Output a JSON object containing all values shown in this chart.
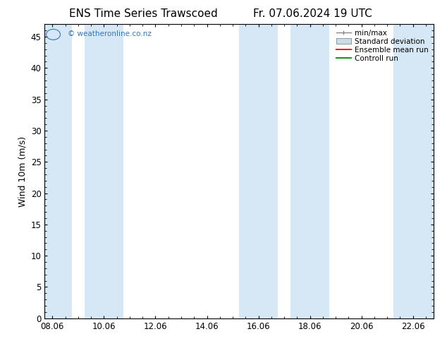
{
  "title_left": "ENS Time Series Trawscoed",
  "title_right": "Fr. 07.06.2024 19 UTC",
  "ylabel": "Wind 10m (m/s)",
  "xlabel_ticks": [
    "08.06",
    "10.06",
    "12.06",
    "14.06",
    "16.06",
    "18.06",
    "20.06",
    "22.06"
  ],
  "x_tick_positions": [
    0,
    2,
    4,
    6,
    8,
    10,
    12,
    14
  ],
  "xlim": [
    -0.3,
    14.8
  ],
  "ylim": [
    0,
    47
  ],
  "yticks": [
    0,
    5,
    10,
    15,
    20,
    25,
    30,
    35,
    40,
    45
  ],
  "background_color": "#ffffff",
  "plot_bg_color": "#ffffff",
  "band_color": "#d6e8f5",
  "shaded_bands": [
    {
      "x_start": -0.3,
      "x_end": 0.75
    },
    {
      "x_start": 1.25,
      "x_end": 2.75
    },
    {
      "x_start": 7.25,
      "x_end": 8.75
    },
    {
      "x_start": 9.25,
      "x_end": 10.75
    },
    {
      "x_start": 13.25,
      "x_end": 14.8
    }
  ],
  "legend_items": [
    {
      "label": "min/max",
      "color": "#aaaaaa",
      "style": "errorbar"
    },
    {
      "label": "Standard deviation",
      "color": "#c8dcea",
      "style": "band"
    },
    {
      "label": "Ensemble mean run",
      "color": "#ff0000",
      "style": "line"
    },
    {
      "label": "Controll run",
      "color": "#008800",
      "style": "line"
    }
  ],
  "watermark_text": "© weatheronline.co.nz",
  "watermark_color": "#3377bb",
  "title_fontsize": 11,
  "tick_fontsize": 8.5,
  "legend_fontsize": 7.5,
  "ylabel_fontsize": 9,
  "font_family": "DejaVu Sans"
}
